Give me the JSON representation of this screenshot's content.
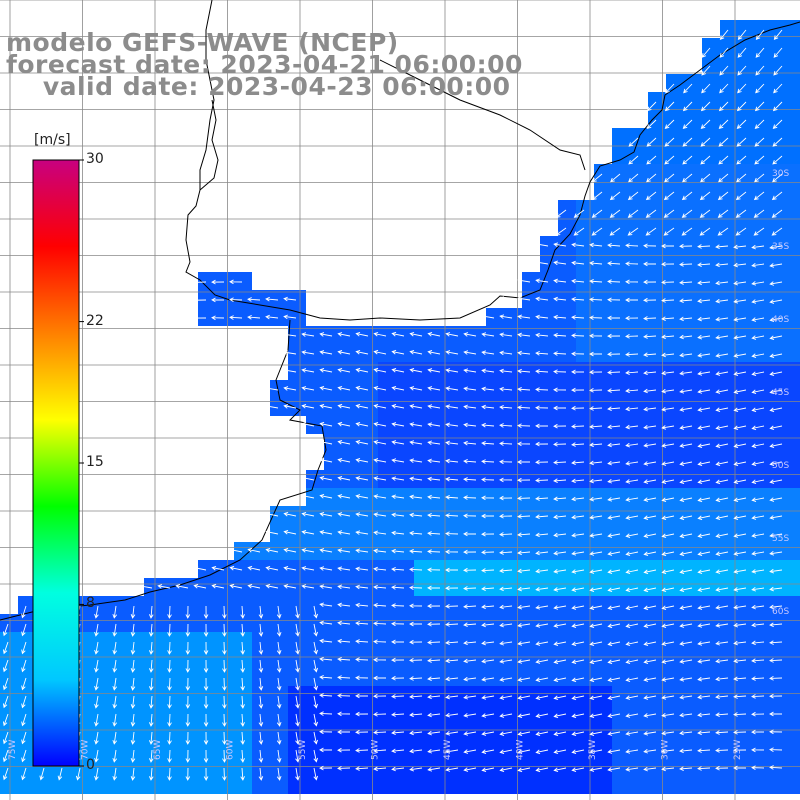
{
  "title": {
    "line1": "modelo GEFS-WAVE (NCEP)",
    "line2": "forecast date: 2023-04-21 06:00:00",
    "line3": "    valid date: 2023-04-23 06:00:00"
  },
  "colorbar": {
    "unit": "[m/s]",
    "min": 0,
    "max": 30,
    "ticks": [
      "30",
      "22",
      "15",
      "8",
      "0"
    ],
    "tick_values": [
      30,
      22,
      15,
      8,
      0
    ],
    "colors": [
      "#0000ff",
      "#00c8ff",
      "#00ffe0",
      "#00ff00",
      "#ffff00",
      "#ff8000",
      "#ff0000",
      "#c80080"
    ]
  },
  "map": {
    "land_color": "#ffffff",
    "grid_color": "#888888",
    "coast_color": "#000000",
    "arrow_color": "#ffffff",
    "field_base_color": "#0a5cff",
    "field_light_color": "#00b4ff",
    "field_dark_color": "#0030ff",
    "lon_labels": [
      "75W",
      "70W",
      "65W",
      "60W",
      "55W",
      "50W",
      "45W",
      "40W",
      "35W",
      "30W",
      "25W"
    ],
    "lat_labels": [
      "30S",
      "35S",
      "40S",
      "45S",
      "50S",
      "55S",
      "60S"
    ]
  }
}
